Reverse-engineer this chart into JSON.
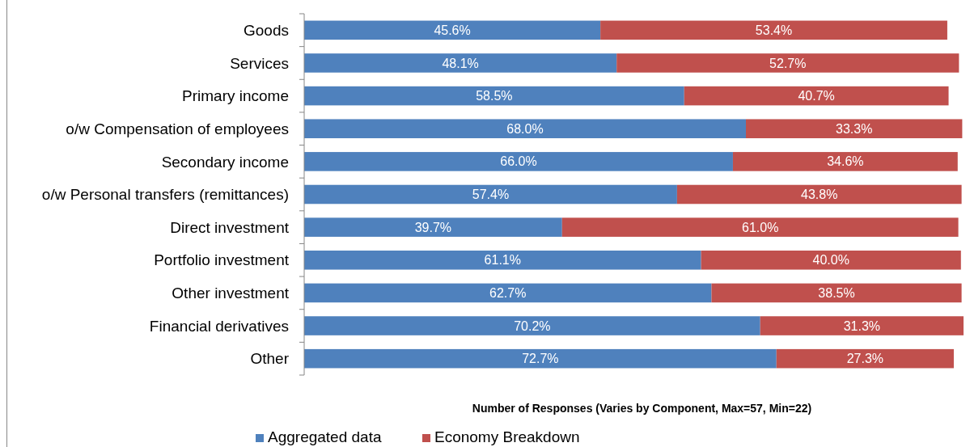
{
  "chart_data": {
    "type": "bar",
    "orientation": "horizontal",
    "stacked": true,
    "legend": "bottom",
    "xlabel": "Number of Responses (Varies by Component, Max=57, Min=22)",
    "categories": [
      "Goods",
      "Services",
      "Primary income",
      "o/w Compensation of employees",
      "Secondary income",
      "o/w Personal transfers (remittances)",
      "Direct investment",
      "Portfolio investment",
      "Other investment",
      "Financial derivatives",
      "Other"
    ],
    "series": [
      {
        "name": "Aggregated data",
        "color": "#4f81bd",
        "values": [
          45.6,
          48.1,
          58.5,
          68.0,
          66.0,
          57.4,
          39.7,
          61.1,
          62.7,
          70.2,
          72.7
        ],
        "value_labels": [
          "45.6%",
          "48.1%",
          "58.5%",
          "68.0%",
          "66.0%",
          "57.4%",
          "39.7%",
          "61.1%",
          "62.7%",
          "70.2%",
          "72.7%"
        ]
      },
      {
        "name": "Economy Breakdown",
        "color": "#c0504d",
        "values": [
          53.4,
          52.7,
          40.7,
          33.3,
          34.6,
          43.8,
          61.0,
          40.0,
          38.5,
          31.3,
          27.3
        ],
        "value_labels": [
          "53.4%",
          "52.7%",
          "40.7%",
          "33.3%",
          "34.6%",
          "43.8%",
          "61.0%",
          "40.0%",
          "38.5%",
          "31.3%",
          "27.3%"
        ]
      }
    ]
  }
}
